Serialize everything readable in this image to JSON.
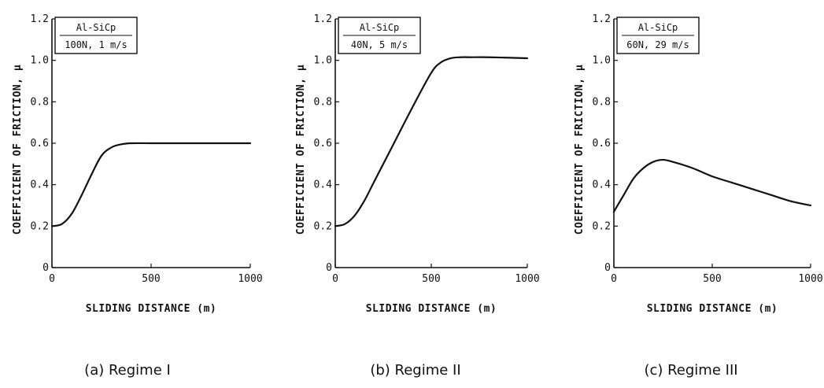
{
  "chart_data": [
    {
      "type": "line",
      "caption": "(a) Regime I",
      "xlabel": "SLIDING DISTANCE (m)",
      "ylabel": "COEFFICIENT OF FRICTION, μ",
      "xlim": [
        0,
        1000
      ],
      "ylim": [
        0,
        1.2
      ],
      "xticks": [
        0,
        500,
        1000
      ],
      "yticks": [
        0,
        0.2,
        0.4,
        0.6,
        0.8,
        1.0,
        1.2
      ],
      "ytick_labels": [
        "0",
        "0.2",
        "0.4",
        "0.6",
        "0.8",
        "1.0",
        "1.2"
      ],
      "legend": {
        "material": "Al-SiCp",
        "conditions": "100N, 1 m/s",
        "placement": "top-left"
      },
      "series": [
        {
          "x": [
            0,
            50,
            100,
            150,
            200,
            250,
            300,
            350,
            400,
            500,
            700,
            1000
          ],
          "y": [
            0.2,
            0.21,
            0.26,
            0.35,
            0.45,
            0.54,
            0.58,
            0.595,
            0.6,
            0.6,
            0.6,
            0.6
          ]
        }
      ]
    },
    {
      "type": "line",
      "caption": "(b) Regime II",
      "xlabel": "SLIDING DISTANCE (m)",
      "ylabel": "COEFFICIENT OF FRICTION, μ",
      "xlim": [
        0,
        1000
      ],
      "ylim": [
        0,
        1.2
      ],
      "xticks": [
        0,
        500,
        1000
      ],
      "yticks": [
        0,
        0.2,
        0.4,
        0.6,
        0.8,
        1.0,
        1.2
      ],
      "ytick_labels": [
        "0",
        "0.2",
        "0.4",
        "0.6",
        "0.8",
        "1.0",
        "1.2"
      ],
      "legend": {
        "material": "Al-SiCp",
        "conditions": "40N, 5 m/s",
        "placement": "top-left"
      },
      "series": [
        {
          "x": [
            0,
            50,
            100,
            150,
            200,
            300,
            400,
            500,
            550,
            600,
            650,
            700,
            800,
            1000
          ],
          "y": [
            0.2,
            0.21,
            0.25,
            0.32,
            0.41,
            0.59,
            0.77,
            0.94,
            0.99,
            1.01,
            1.015,
            1.015,
            1.015,
            1.01
          ]
        }
      ]
    },
    {
      "type": "line",
      "caption": "(c) Regime III",
      "xlabel": "SLIDING DISTANCE (m)",
      "ylabel": "COEFFICIENT OF FRICTION, μ",
      "xlim": [
        0,
        1000
      ],
      "ylim": [
        0,
        1.2
      ],
      "xticks": [
        0,
        500,
        1000
      ],
      "yticks": [
        0,
        0.2,
        0.4,
        0.6,
        0.8,
        1.0,
        1.2
      ],
      "ytick_labels": [
        "0",
        "0.2",
        "0.4",
        "0.6",
        "0.8",
        "1.0",
        "1.2"
      ],
      "legend": {
        "material": "Al-SiCp",
        "conditions": "60N, 29 m/s",
        "placement": "top-left"
      },
      "series": [
        {
          "x": [
            0,
            50,
            100,
            150,
            200,
            250,
            300,
            400,
            500,
            600,
            700,
            800,
            900,
            1000
          ],
          "y": [
            0.27,
            0.35,
            0.43,
            0.48,
            0.51,
            0.52,
            0.51,
            0.48,
            0.44,
            0.41,
            0.38,
            0.35,
            0.32,
            0.3
          ]
        }
      ]
    }
  ]
}
